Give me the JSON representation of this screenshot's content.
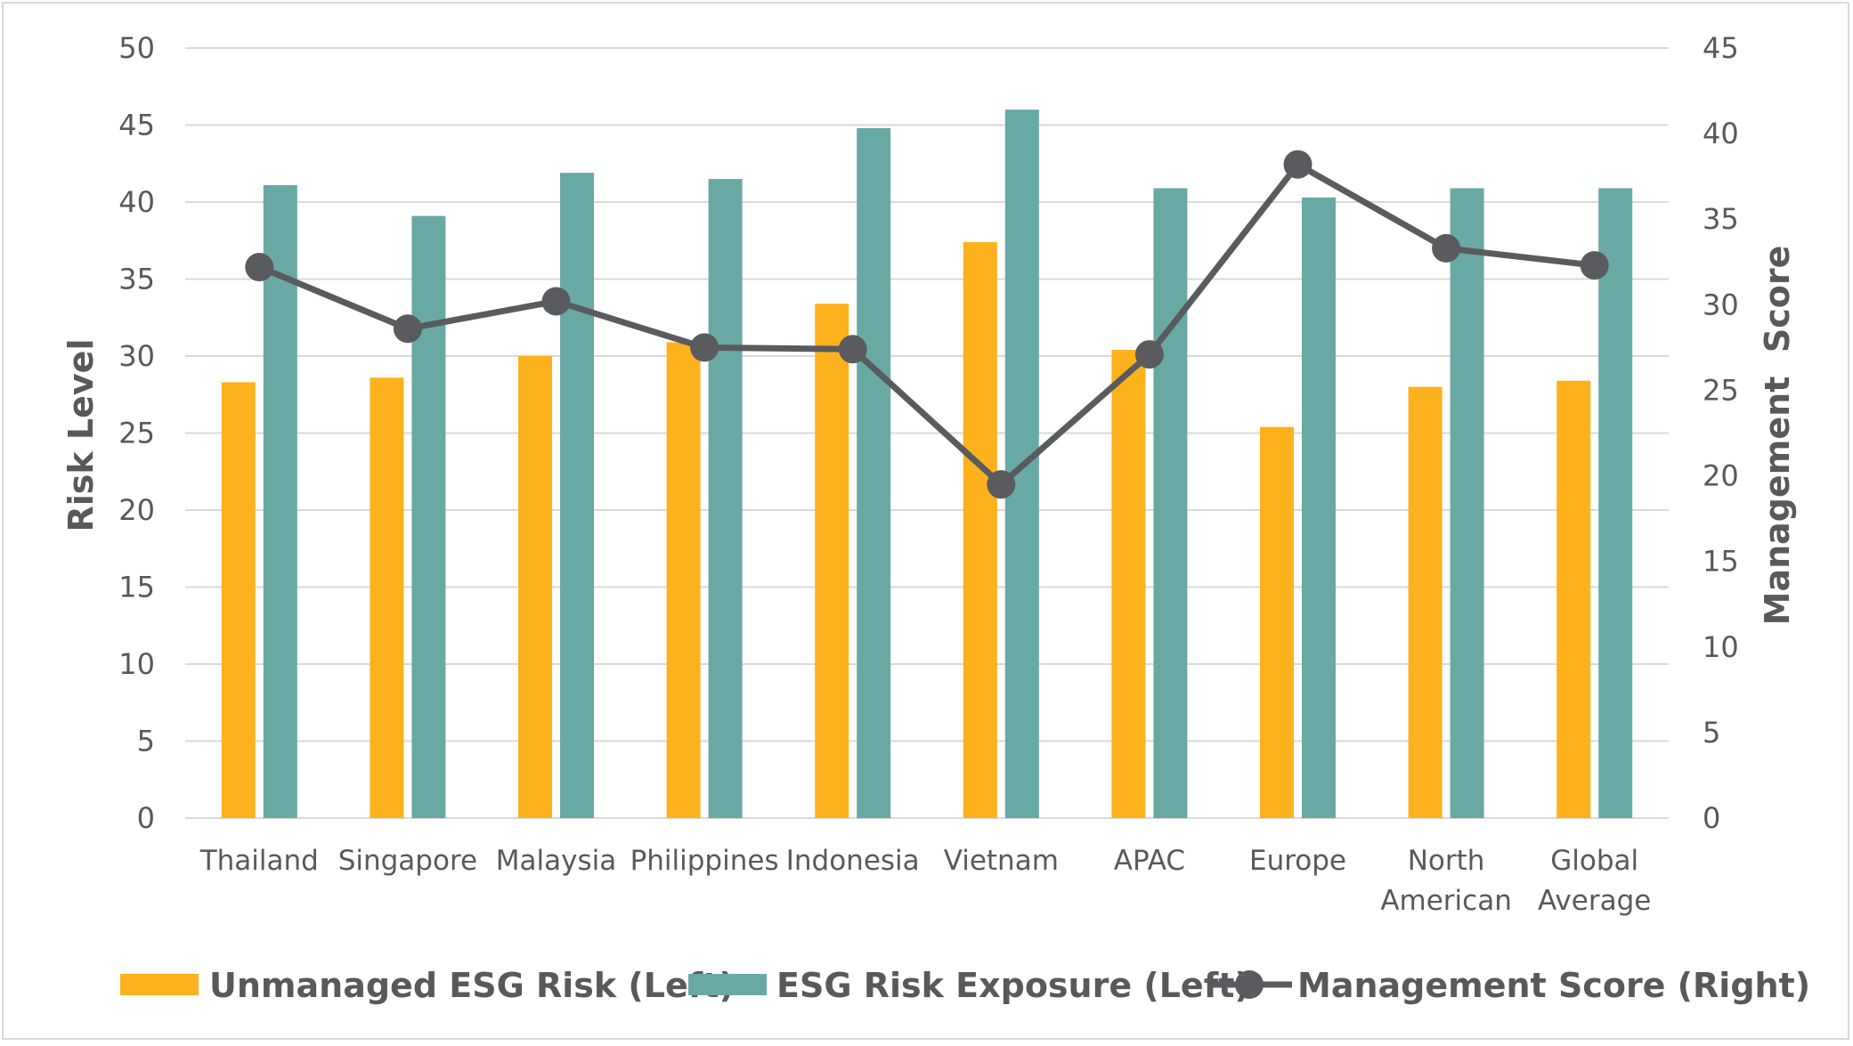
{
  "chart_data": {
    "type": "bar",
    "categories": [
      [
        "Thailand"
      ],
      [
        "Singapore"
      ],
      [
        "Malaysia"
      ],
      [
        "Philippines"
      ],
      [
        "Indonesia"
      ],
      [
        "Vietnam"
      ],
      [
        "APAC"
      ],
      [
        "Europe"
      ],
      [
        "North",
        "American"
      ],
      [
        "Global",
        "Average"
      ]
    ],
    "series": [
      {
        "name": "Unmanaged ESG Risk (Left)",
        "type": "bar",
        "axis": "left",
        "color": "#FDB11D",
        "values": [
          28.3,
          28.6,
          30.0,
          30.9,
          33.4,
          37.4,
          30.4,
          25.4,
          28.0,
          28.4
        ]
      },
      {
        "name": "ESG Risk Exposure (Left)",
        "type": "bar",
        "axis": "left",
        "color": "#69A9A3",
        "values": [
          41.1,
          39.1,
          41.9,
          41.5,
          44.8,
          46.0,
          40.9,
          40.3,
          40.9,
          40.9
        ]
      },
      {
        "name": "Management Score (Right)",
        "type": "line",
        "axis": "right",
        "color": "#595B5F",
        "marker": "circle",
        "values": [
          32.2,
          28.6,
          30.2,
          27.5,
          27.4,
          19.5,
          27.1,
          38.2,
          33.3,
          32.3
        ]
      }
    ],
    "xlabel": "",
    "ylabel": "Risk Level",
    "y2label": "Management  Score",
    "ylim": [
      0,
      50
    ],
    "yticks": [
      0,
      5,
      10,
      15,
      20,
      25,
      30,
      35,
      40,
      45,
      50
    ],
    "y2lim": [
      0,
      45
    ],
    "y2ticks": [
      0,
      5,
      10,
      15,
      20,
      25,
      30,
      35,
      40,
      45
    ],
    "grid": true,
    "legend_position": "bottom"
  }
}
